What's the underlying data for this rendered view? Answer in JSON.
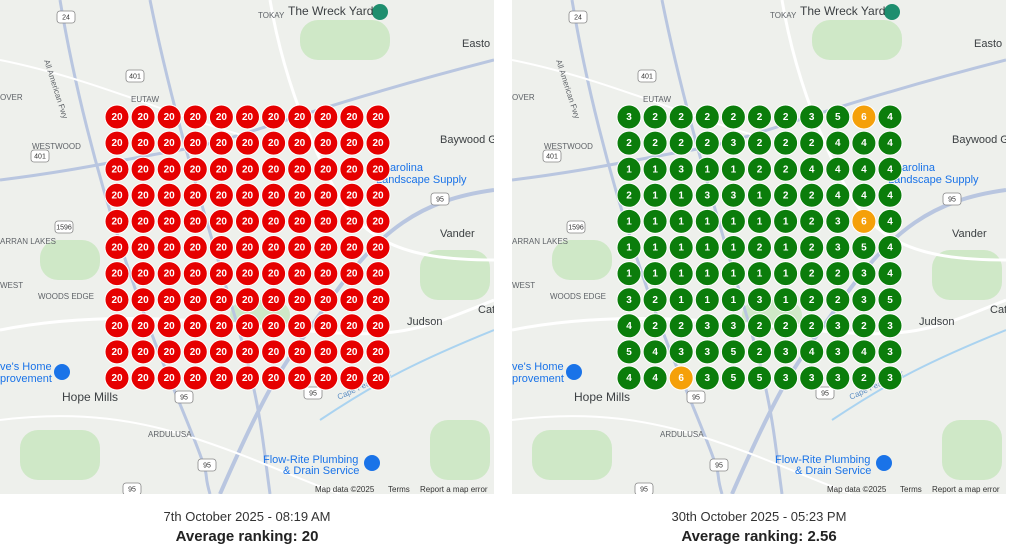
{
  "map": {
    "labels": [
      "The Wreck Yard",
      "Easto",
      "TOKAY",
      "EUTAW",
      "OVER",
      "WESTWOOD",
      "Baywood G",
      "Carolina",
      "Landscape Supply",
      "ARRAN LAKES",
      "Vander",
      "WEST",
      "WOODS EDGE",
      "Cat",
      "Judson",
      "ve's Home",
      "provement",
      "Hope Mills",
      "ARDULUSA",
      "Flow-Rite Plumbing",
      "& Drain Service",
      "Cape Fear River",
      "All American Fwy"
    ],
    "shields": [
      "24",
      "401",
      "401",
      "1596",
      "95",
      "95",
      "95",
      "95",
      "95"
    ],
    "footer": [
      "Map data ©2025",
      "Terms",
      "Report a map error"
    ]
  },
  "panels": [
    {
      "date": "7th October 2025 - 08:19 AM",
      "average": "Average ranking: 20",
      "grid": [
        [
          20,
          20,
          20,
          20,
          20,
          20,
          20,
          20,
          20,
          20,
          20
        ],
        [
          20,
          20,
          20,
          20,
          20,
          20,
          20,
          20,
          20,
          20,
          20
        ],
        [
          20,
          20,
          20,
          20,
          20,
          20,
          20,
          20,
          20,
          20,
          20
        ],
        [
          20,
          20,
          20,
          20,
          20,
          20,
          20,
          20,
          20,
          20,
          20
        ],
        [
          20,
          20,
          20,
          20,
          20,
          20,
          20,
          20,
          20,
          20,
          20
        ],
        [
          20,
          20,
          20,
          20,
          20,
          20,
          20,
          20,
          20,
          20,
          20
        ],
        [
          20,
          20,
          20,
          20,
          20,
          20,
          20,
          20,
          20,
          20,
          20
        ],
        [
          20,
          20,
          20,
          20,
          20,
          20,
          20,
          20,
          20,
          20,
          20
        ],
        [
          20,
          20,
          20,
          20,
          20,
          20,
          20,
          20,
          20,
          20,
          20
        ],
        [
          20,
          20,
          20,
          20,
          20,
          20,
          20,
          20,
          20,
          20,
          20
        ],
        [
          20,
          20,
          20,
          20,
          20,
          20,
          20,
          20,
          20,
          20,
          20
        ]
      ]
    },
    {
      "date": "30th October 2025 - 05:23 PM",
      "average": "Average ranking: 2.56",
      "grid": [
        [
          3,
          2,
          2,
          2,
          2,
          2,
          2,
          3,
          5,
          6,
          4
        ],
        [
          2,
          2,
          2,
          2,
          3,
          2,
          2,
          2,
          4,
          4,
          4
        ],
        [
          1,
          1,
          3,
          1,
          1,
          2,
          2,
          4,
          4,
          4,
          4
        ],
        [
          2,
          1,
          1,
          3,
          3,
          1,
          2,
          2,
          4,
          4,
          4
        ],
        [
          1,
          1,
          1,
          1,
          1,
          1,
          1,
          2,
          3,
          6,
          4
        ],
        [
          1,
          1,
          1,
          1,
          1,
          2,
          1,
          2,
          3,
          5,
          4
        ],
        [
          1,
          1,
          1,
          1,
          1,
          1,
          1,
          2,
          2,
          3,
          4
        ],
        [
          3,
          2,
          1,
          1,
          1,
          3,
          1,
          2,
          2,
          3,
          5
        ],
        [
          4,
          2,
          2,
          3,
          3,
          2,
          2,
          2,
          3,
          2,
          3
        ],
        [
          5,
          4,
          3,
          3,
          5,
          2,
          3,
          4,
          3,
          4,
          3
        ],
        [
          4,
          4,
          6,
          3,
          5,
          5,
          3,
          3,
          3,
          2,
          3
        ]
      ]
    }
  ]
}
